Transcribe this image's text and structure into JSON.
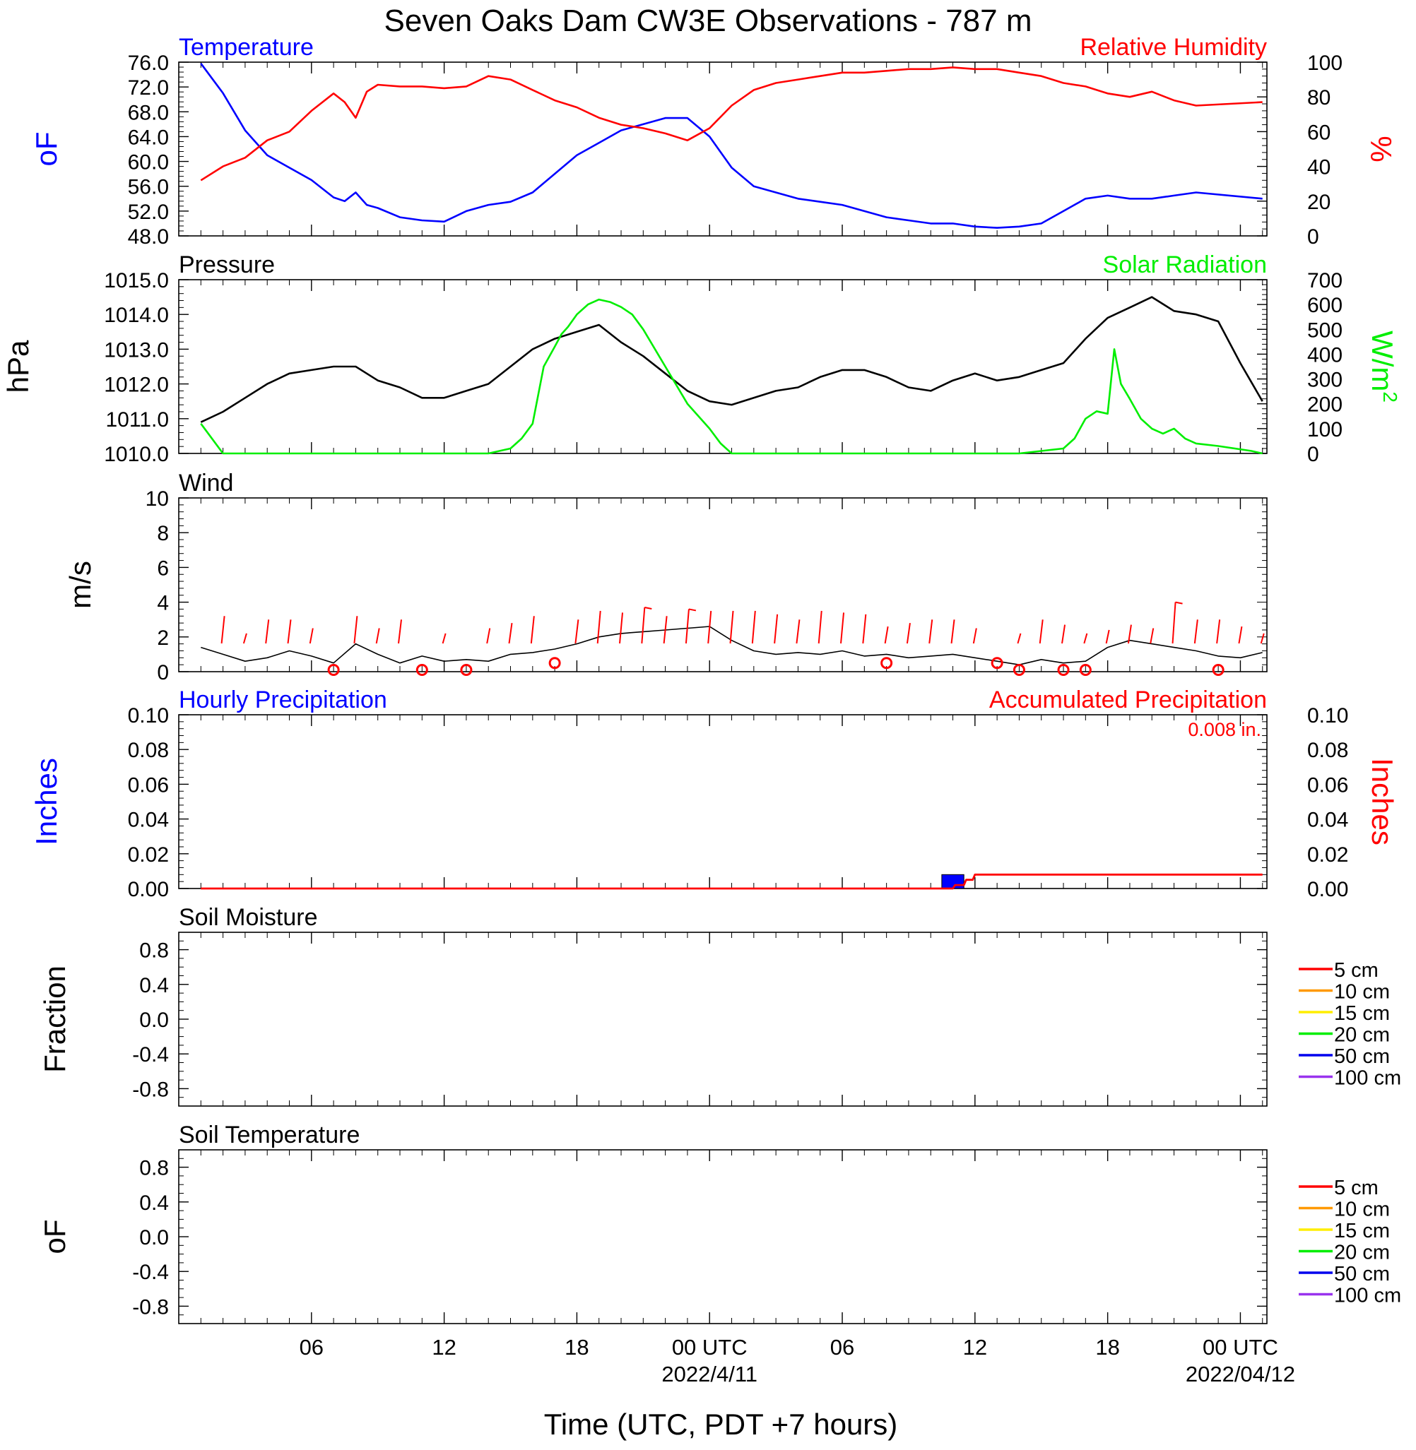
{
  "title": "Seven Oaks Dam CW3E Observations - 787 m",
  "x_axis": {
    "label": "Time (UTC, PDT +7 hours)",
    "tick_labels": [
      "06",
      "12",
      "18",
      "00 UTC",
      "06",
      "12",
      "18",
      "00 UTC"
    ],
    "date_labels": [
      "2022/4/11",
      "2022/04/12"
    ]
  },
  "chart_data": [
    {
      "type": "line",
      "title": "Temperature",
      "title_right": "Relative Humidity",
      "ylabel": "oF",
      "ylabel_right": "%",
      "ylim": [
        48,
        76
      ],
      "ylim_right": [
        0,
        100
      ],
      "y_tick_labels": [
        "76.0",
        "72.0",
        "68.0",
        "64.0",
        "60.0",
        "56.0",
        "52.0",
        "48.0"
      ],
      "y_tick_labels_right": [
        "100",
        "80",
        "60",
        "40",
        "20",
        "0"
      ],
      "x_hours": [
        1,
        2,
        3,
        4,
        5,
        6,
        7,
        7.5,
        8,
        8.5,
        9,
        10,
        11,
        12,
        13,
        14,
        15,
        16,
        17,
        18,
        19,
        20,
        21,
        22,
        23,
        24,
        25,
        26,
        27,
        28,
        29,
        30,
        31,
        32,
        33,
        34,
        35,
        36,
        37,
        38,
        39,
        40,
        41,
        42,
        43,
        44,
        45,
        46,
        49
      ],
      "series": [
        {
          "name": "Temperature",
          "color": "#0000ff",
          "axis": "left",
          "values": [
            75.8,
            71,
            65,
            61,
            59,
            57,
            54.2,
            53.6,
            55,
            53,
            52.5,
            51,
            50.5,
            50.3,
            52,
            53,
            53.5,
            55,
            58,
            61,
            63,
            65,
            66,
            67,
            67,
            64,
            59,
            56,
            55,
            54,
            53.5,
            53,
            52,
            51,
            50.5,
            50,
            50,
            49.5,
            49.3,
            49.5,
            50,
            52,
            54,
            54.5,
            54,
            54,
            54.5,
            55,
            54
          ]
        },
        {
          "name": "Relative Humidity",
          "color": "#ff0000",
          "axis": "right",
          "values": [
            32,
            40,
            45,
            55,
            60,
            72,
            82,
            77,
            68,
            83,
            87,
            86,
            86,
            85,
            86,
            92,
            90,
            84,
            78,
            74,
            68,
            64,
            62,
            59,
            55,
            62,
            75,
            84,
            88,
            90,
            92,
            94,
            94,
            95,
            96,
            96,
            97,
            96,
            96,
            94,
            92,
            88,
            86,
            82,
            80,
            83,
            78,
            75,
            77
          ]
        }
      ]
    },
    {
      "type": "line",
      "title": "Pressure",
      "title_right": "Solar Radiation",
      "ylabel": "hPa",
      "ylabel_right": "W/m2",
      "ylim": [
        1010,
        1015
      ],
      "ylim_right": [
        0,
        700
      ],
      "y_tick_labels": [
        "1015.0",
        "1014.0",
        "1013.0",
        "1012.0",
        "1011.0",
        "1010.0"
      ],
      "y_tick_labels_right": [
        "700",
        "600",
        "500",
        "400",
        "300",
        "200",
        "100",
        "0"
      ],
      "series": [
        {
          "name": "Pressure",
          "color": "#000000",
          "axis": "left",
          "x_hours": [
            1,
            2,
            3,
            4,
            5,
            6,
            7,
            8,
            9,
            10,
            11,
            12,
            13,
            14,
            15,
            16,
            17,
            18,
            19,
            20,
            21,
            22,
            23,
            24,
            25,
            26,
            27,
            28,
            29,
            30,
            31,
            32,
            33,
            34,
            35,
            36,
            37,
            38,
            39,
            40,
            41,
            42,
            43,
            44,
            45,
            46,
            47,
            48,
            49
          ],
          "values": [
            1010.9,
            1011.2,
            1011.6,
            1012.0,
            1012.3,
            1012.4,
            1012.5,
            1012.5,
            1012.1,
            1011.9,
            1011.6,
            1011.6,
            1011.8,
            1012.0,
            1012.5,
            1013.0,
            1013.3,
            1013.5,
            1013.7,
            1013.2,
            1012.8,
            1012.3,
            1011.8,
            1011.5,
            1011.4,
            1011.6,
            1011.8,
            1011.9,
            1012.2,
            1012.4,
            1012.4,
            1012.2,
            1011.9,
            1011.8,
            1012.1,
            1012.3,
            1012.1,
            1012.2,
            1012.4,
            1012.6,
            1013.3,
            1013.9,
            1014.2,
            1014.5,
            1014.1,
            1014.0,
            1013.8,
            1012.6,
            1011.5
          ]
        },
        {
          "name": "Solar Radiation",
          "color": "#00ee00",
          "axis": "right",
          "x_hours": [
            1,
            2,
            13,
            14,
            15,
            15.5,
            16,
            16.5,
            17,
            17.3,
            17.6,
            18,
            18.5,
            19,
            19.5,
            20,
            20.5,
            21,
            22,
            23,
            24,
            24.5,
            25,
            26,
            37,
            38,
            39,
            40,
            40.5,
            41,
            41.5,
            42,
            42.3,
            42.6,
            43,
            43.5,
            44,
            44.5,
            45,
            45.5,
            46,
            47,
            48.5,
            49
          ],
          "values": [
            120,
            0,
            0,
            0,
            20,
            60,
            120,
            350,
            430,
            480,
            510,
            560,
            600,
            620,
            610,
            590,
            560,
            500,
            350,
            200,
            100,
            40,
            0,
            0,
            0,
            0,
            10,
            20,
            60,
            140,
            170,
            160,
            420,
            280,
            220,
            140,
            100,
            80,
            100,
            60,
            40,
            30,
            10,
            0
          ]
        }
      ]
    },
    {
      "type": "line",
      "title": "Wind",
      "ylabel": "m/s",
      "ylim": [
        0,
        10
      ],
      "y_tick_labels": [
        "10",
        "8",
        "6",
        "4",
        "2",
        "0"
      ],
      "series": [
        {
          "name": "Wind",
          "color": "#000000",
          "x_hours": [
            1,
            2,
            3,
            4,
            5,
            6,
            7,
            8,
            9,
            10,
            11,
            12,
            13,
            14,
            15,
            16,
            17,
            18,
            19,
            20,
            21,
            22,
            23,
            24,
            25,
            26,
            27,
            28,
            29,
            30,
            31,
            32,
            33,
            34,
            35,
            36,
            37,
            38,
            39,
            40,
            41,
            42,
            43,
            44,
            45,
            46,
            47,
            48,
            49
          ],
          "values": [
            1.4,
            1.0,
            0.6,
            0.8,
            1.2,
            0.9,
            0.5,
            1.6,
            1.0,
            0.5,
            0.9,
            0.6,
            0.7,
            0.6,
            1.0,
            1.1,
            1.3,
            1.6,
            2.0,
            2.2,
            2.3,
            2.4,
            2.5,
            2.6,
            1.8,
            1.2,
            1.0,
            1.1,
            1.0,
            1.2,
            0.9,
            1.0,
            0.8,
            0.9,
            1.0,
            0.8,
            0.6,
            0.4,
            0.7,
            0.5,
            0.6,
            1.4,
            1.8,
            1.6,
            1.4,
            1.2,
            0.9,
            0.8,
            1.1
          ]
        },
        {
          "name": "Wind barbs",
          "color": "#ff0000",
          "x_hours": [
            2,
            3,
            4,
            5,
            6,
            8,
            9,
            10,
            12,
            14,
            15,
            16,
            18,
            19,
            20,
            21,
            22,
            23,
            24,
            25,
            26,
            27,
            28,
            29,
            30,
            31,
            32,
            33,
            34,
            35,
            36,
            38,
            39,
            40,
            41,
            42,
            43,
            44,
            45,
            46,
            47,
            48,
            49
          ],
          "values": [
            3.2,
            2.2,
            3.0,
            3.0,
            2.5,
            3.2,
            2.5,
            3.0,
            2.2,
            2.5,
            2.8,
            3.2,
            3.0,
            3.5,
            3.4,
            3.7,
            3.2,
            3.6,
            3.5,
            3.5,
            3.5,
            3.3,
            3.0,
            3.5,
            3.4,
            3.3,
            2.6,
            2.8,
            3.0,
            3.0,
            2.5,
            2.2,
            3.0,
            2.7,
            2.2,
            2.4,
            2.7,
            2.5,
            4.0,
            3.0,
            3.0,
            2.6,
            2.2
          ]
        },
        {
          "name": "Calm",
          "color": "#ff0000",
          "type": "scatter",
          "x_hours": [
            7,
            11,
            13,
            17,
            32,
            37,
            38,
            40,
            41,
            47
          ],
          "values": [
            0.1,
            0.1,
            0.1,
            0.5,
            0.5,
            0.5,
            0.1,
            0.1,
            0.1,
            0.1
          ]
        }
      ]
    },
    {
      "type": "bar",
      "title": "Hourly Precipitation",
      "title_right": "Accumulated Precipitation",
      "annotation": "0.008 in.",
      "ylabel": "Inches",
      "ylabel_right": "Inches",
      "ylim": [
        0,
        0.1
      ],
      "ylim_right": [
        0,
        0.1
      ],
      "y_tick_labels": [
        "0.10",
        "0.08",
        "0.06",
        "0.04",
        "0.02",
        "0.00"
      ],
      "y_tick_labels_right": [
        "0.10",
        "0.08",
        "0.06",
        "0.04",
        "0.02",
        "0.00"
      ],
      "series": [
        {
          "name": "Hourly Precipitation",
          "color": "#0000ff",
          "type": "bar",
          "x_hours": [
            35
          ],
          "values": [
            0.008
          ],
          "bar_width_hours": 1
        },
        {
          "name": "Accumulated Precipitation",
          "color": "#ff0000",
          "type": "step",
          "x_hours": [
            1,
            35,
            35.1,
            35.5,
            35.6,
            35.9,
            36,
            49
          ],
          "values": [
            0,
            0,
            0.002,
            0.002,
            0.005,
            0.005,
            0.008,
            0.008
          ]
        }
      ]
    },
    {
      "type": "line",
      "title": "Soil Moisture",
      "ylabel": "Fraction",
      "ylim": [
        -1,
        1
      ],
      "y_tick_labels": [
        "0.8",
        "0.4",
        "0.0",
        "-0.4",
        "-0.8"
      ],
      "legend": [
        {
          "label": "5 cm",
          "color": "#ff0000"
        },
        {
          "label": "10 cm",
          "color": "#ff9900"
        },
        {
          "label": "15 cm",
          "color": "#ffee00"
        },
        {
          "label": "20 cm",
          "color": "#00ee00"
        },
        {
          "label": "50 cm",
          "color": "#0000ee"
        },
        {
          "label": "100 cm",
          "color": "#9933ee"
        }
      ],
      "series": []
    },
    {
      "type": "line",
      "title": "Soil Temperature",
      "ylabel": "oF",
      "ylim": [
        -1,
        1
      ],
      "y_tick_labels": [
        "0.8",
        "0.4",
        "0.0",
        "-0.4",
        "-0.8"
      ],
      "legend": [
        {
          "label": "5 cm",
          "color": "#ff0000"
        },
        {
          "label": "10 cm",
          "color": "#ff9900"
        },
        {
          "label": "15 cm",
          "color": "#ffee00"
        },
        {
          "label": "20 cm",
          "color": "#00ee00"
        },
        {
          "label": "50 cm",
          "color": "#0000ee"
        },
        {
          "label": "100 cm",
          "color": "#9933ee"
        }
      ],
      "series": []
    }
  ]
}
